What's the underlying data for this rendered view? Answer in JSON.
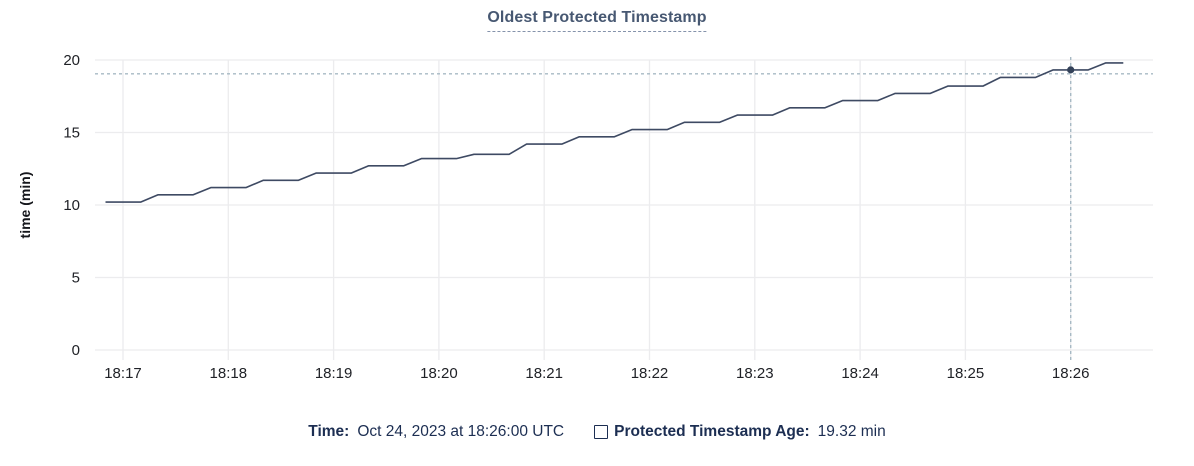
{
  "chart_data": {
    "type": "line",
    "title": "Oldest Protected Timestamp",
    "xlabel": "",
    "ylabel": "time (min)",
    "ylim": [
      0,
      20
    ],
    "yticks": [
      0,
      5,
      10,
      15,
      20
    ],
    "xticks": [
      "18:17",
      "18:18",
      "18:19",
      "18:20",
      "18:21",
      "18:22",
      "18:23",
      "18:24",
      "18:25",
      "18:26"
    ],
    "grid": true,
    "legend_position": "bottom",
    "series": [
      {
        "name": "Protected Timestamp Age",
        "unit": "min",
        "start_time": "18:16:50",
        "interval_sec": 10,
        "values": [
          10.2,
          10.2,
          10.2,
          10.7,
          10.7,
          10.7,
          11.2,
          11.2,
          11.2,
          11.7,
          11.7,
          11.7,
          12.2,
          12.2,
          12.2,
          12.7,
          12.7,
          12.7,
          13.2,
          13.2,
          13.2,
          13.5,
          13.5,
          13.5,
          14.2,
          14.2,
          14.2,
          14.7,
          14.7,
          14.7,
          15.2,
          15.2,
          15.2,
          15.7,
          15.7,
          15.7,
          16.2,
          16.2,
          16.2,
          16.7,
          16.7,
          16.7,
          17.2,
          17.2,
          17.2,
          17.7,
          17.7,
          17.7,
          18.2,
          18.2,
          18.2,
          18.8,
          18.8,
          18.8,
          19.32,
          19.32,
          19.32,
          19.8,
          19.8
        ]
      }
    ],
    "highlight": {
      "time": "18:26:00",
      "value": 19.32,
      "hover_line_value": 19.05
    }
  },
  "tooltip": {
    "time_label": "Time:",
    "time_value": "Oct 24, 2023 at 18:26:00 UTC",
    "series_label": "Protected Timestamp Age:",
    "series_value": "19.32 min",
    "swatch_icon": "square-outline"
  },
  "colors": {
    "line": "#3e4a63",
    "highlight_dot": "#344259",
    "title": "#475872",
    "navy_text": "#1c2e52",
    "grid": "#ececee",
    "crosshair": "#a7b9c4",
    "axis_text": "#202227"
  }
}
